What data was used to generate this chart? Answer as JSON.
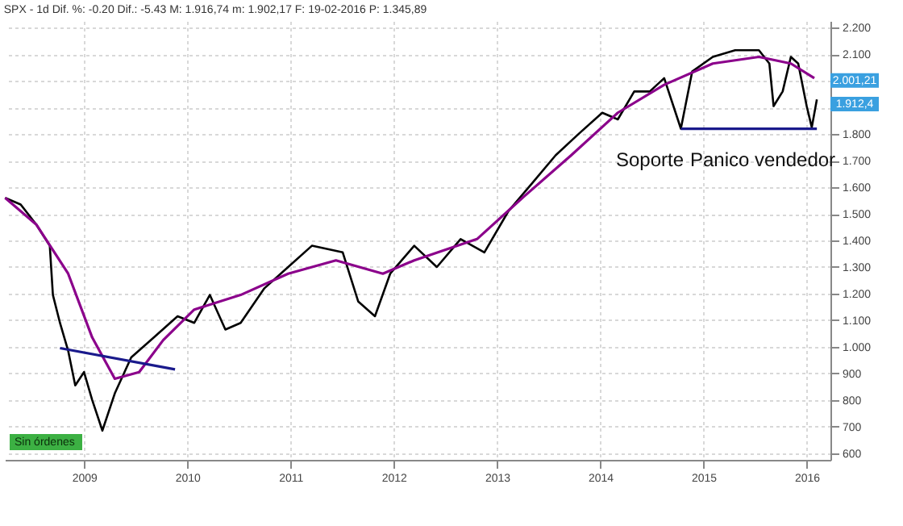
{
  "chart_data": {
    "type": "line",
    "title": "SPX - 1d Dif. %: -0.20 Dif.: -5.43 M: 1.916,74 m: 1.902,17 F: 19-02-2016 P: 1.345,89",
    "series": [
      {
        "color": "#000000",
        "x": [
          "2008-03-28",
          "2008-05-22",
          "2008-07-16",
          "2008-09-02",
          "2008-09-13",
          "2008-10-08",
          "2008-11-06",
          "2008-12-01",
          "2009-01-01",
          "2009-01-30",
          "2009-03-07",
          "2009-04-20",
          "2009-06-17",
          "2009-09-05",
          "2009-11-28",
          "2010-01-26",
          "2010-03-22",
          "2010-05-16",
          "2010-07-09",
          "2010-10-01",
          "2010-12-24",
          "2011-03-18",
          "2011-07-05",
          "2011-08-29",
          "2011-10-27",
          "2011-12-20",
          "2012-03-14",
          "2012-06-02",
          "2012-08-25",
          "2012-11-17",
          "2013-02-10",
          "2013-05-05",
          "2013-07-27",
          "2013-10-16",
          "2014-01-08",
          "2014-03-04",
          "2014-05-01",
          "2014-06-25",
          "2014-08-15",
          "2014-10-13",
          "2014-11-22",
          "2015-02-03",
          "2015-04-23",
          "2015-07-16",
          "2015-08-22",
          "2015-09-06",
          "2015-10-08",
          "2015-11-06",
          "2015-12-02",
          "2016-01-01",
          "2016-01-19",
          "2016-02-06"
        ],
        "values": [
          1560,
          1535,
          1460,
          1380,
          1195,
          1090,
          985,
          855,
          905,
          800,
          685,
          825,
          960,
          1035,
          1115,
          1090,
          1195,
          1065,
          1090,
          1220,
          1300,
          1380,
          1355,
          1170,
          1115,
          1275,
          1380,
          1300,
          1405,
          1355,
          1510,
          1615,
          1720,
          1800,
          1880,
          1855,
          1960,
          1960,
          2010,
          1820,
          2035,
          2090,
          2115,
          2115,
          2065,
          1905,
          1960,
          2090,
          2065,
          1905,
          1825,
          1930
        ]
      },
      {
        "color": "#8b008b",
        "x": [
          "2008-03-28",
          "2008-07-16",
          "2008-11-06",
          "2009-01-30",
          "2009-04-20",
          "2009-07-15",
          "2009-10-08",
          "2010-01-26",
          "2010-07-09",
          "2010-12-24",
          "2011-06-11",
          "2011-11-24",
          "2012-03-14",
          "2012-10-22",
          "2013-04-06",
          "2013-09-20",
          "2014-03-04",
          "2014-08-15",
          "2015-02-03",
          "2015-07-16",
          "2015-11-06",
          "2016-01-28"
        ],
        "values": [
          1560,
          1460,
          1275,
          1035,
          880,
          905,
          1025,
          1140,
          1195,
          1275,
          1325,
          1275,
          1325,
          1405,
          1565,
          1720,
          1880,
          1985,
          2065,
          2090,
          2065,
          2010
        ]
      },
      {
        "color": "#1a1a8c",
        "x": [
          "2008-10-08",
          "2009-11-19"
        ],
        "values": [
          995,
          915
        ]
      },
      {
        "color": "#1a1a8c",
        "x": [
          "2014-10-13",
          "2016-02-06"
        ],
        "values": [
          1820,
          1820
        ]
      }
    ],
    "annotations": [
      "Soporte",
      "Panico vendedor",
      {
        "text": "2.001,21",
        "y": 2001.21
      },
      {
        "text": "1.912,4",
        "y": 1912.4
      },
      "Sin órdenes"
    ],
    "xlim": [
      "2008-03-27",
      "2016-03-25"
    ],
    "xticks": [
      {
        "value": "2009-01-01",
        "label": "2009"
      },
      {
        "value": "2010-01-01",
        "label": "2010"
      },
      {
        "value": "2011-01-01",
        "label": "2011"
      },
      {
        "value": "2012-01-01",
        "label": "2012"
      },
      {
        "value": "2013-01-01",
        "label": "2013"
      },
      {
        "value": "2014-01-01",
        "label": "2014"
      },
      {
        "value": "2015-01-01",
        "label": "2015"
      },
      {
        "value": "2016-01-01",
        "label": "2016"
      }
    ],
    "ylim": [
      575,
      2225
    ],
    "yticks": [
      {
        "value": 600,
        "label": "600"
      },
      {
        "value": 700,
        "label": "700"
      },
      {
        "value": 800,
        "label": "800"
      },
      {
        "value": 900,
        "label": "900"
      },
      {
        "value": 1000,
        "label": "1.000"
      },
      {
        "value": 1100,
        "label": "1.100"
      },
      {
        "value": 1200,
        "label": "1.200"
      },
      {
        "value": 1300,
        "label": "1.300"
      },
      {
        "value": 1400,
        "label": "1.400"
      },
      {
        "value": 1500,
        "label": "1.500"
      },
      {
        "value": 1600,
        "label": "1.600"
      },
      {
        "value": 1700,
        "label": "1.700"
      },
      {
        "value": 1800,
        "label": "1.800"
      },
      {
        "value": 1900,
        "label": null
      },
      {
        "value": 2000,
        "label": null
      },
      {
        "value": 2100,
        "label": "2.100"
      },
      {
        "value": 2200,
        "label": "2.200"
      }
    ],
    "grid": true,
    "marker": "none",
    "line_style": "solid"
  }
}
